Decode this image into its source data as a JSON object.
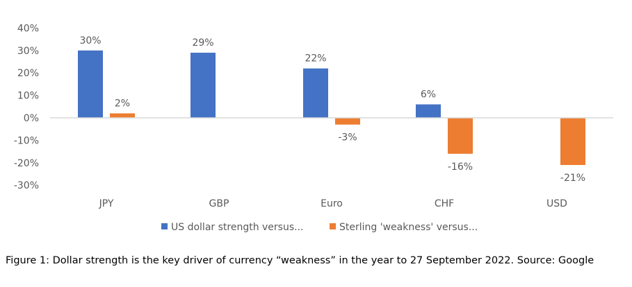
{
  "chart_data": {
    "type": "bar",
    "categories": [
      "JPY",
      "GBP",
      "Euro",
      "CHF",
      "USD"
    ],
    "series": [
      {
        "name": "US dollar strength versus...",
        "color": "#4472C4",
        "values": [
          30,
          29,
          22,
          6,
          null
        ],
        "labels": [
          "30%",
          "29%",
          "22%",
          "6%",
          null
        ]
      },
      {
        "name": "Sterling 'weakness' versus...",
        "color": "#ED7D31",
        "values": [
          2,
          null,
          -3,
          -16,
          -21
        ],
        "labels": [
          "2%",
          null,
          "-3%",
          "-16%",
          "-21%"
        ]
      }
    ],
    "ylim": [
      -30,
      40
    ],
    "yticks": [
      40,
      30,
      20,
      10,
      0,
      -10,
      -20,
      -30
    ],
    "ytick_labels": [
      "40%",
      "30%",
      "20%",
      "10%",
      "0%",
      "-10%",
      "-20%",
      "-30%"
    ],
    "legend": "bottom",
    "title": "",
    "xlabel": "",
    "ylabel": ""
  },
  "caption": "Figure 1: Dollar strength is the key driver of currency “weakness” in the year to 27 September 2022. Source: Google"
}
